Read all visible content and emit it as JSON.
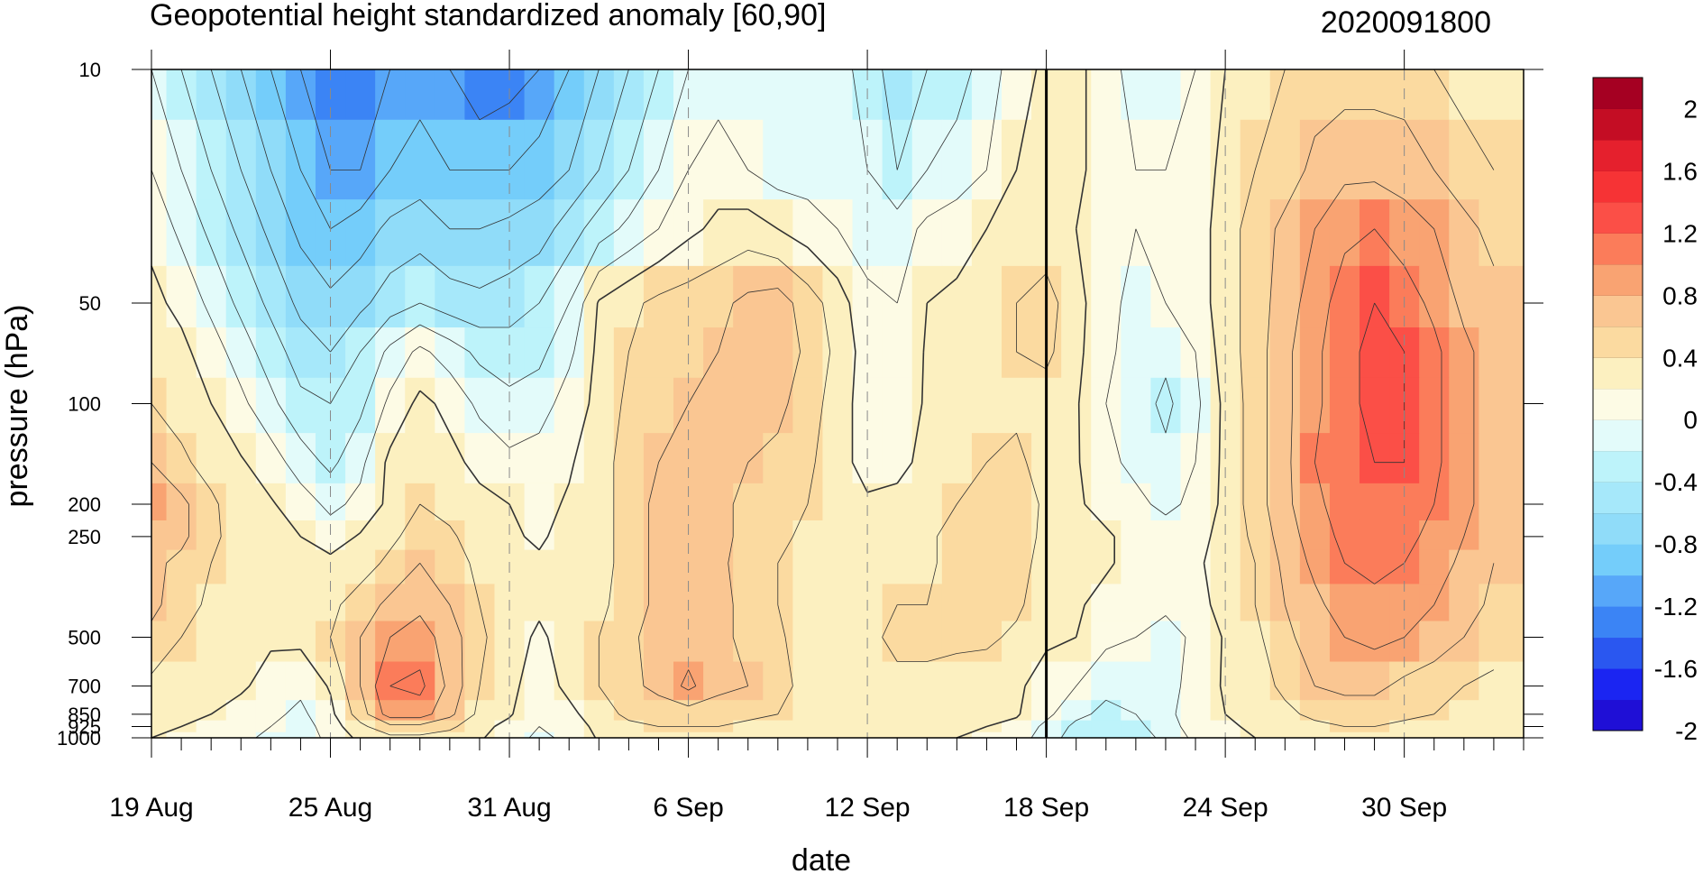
{
  "chart_data": {
    "type": "heatmap",
    "title": "Geopotential height standardized anomaly [60,90]",
    "timestamp": "2020091800",
    "xlabel": "date",
    "ylabel": "pressure (hPa)",
    "x_ticks": [
      "19 Aug",
      "25 Aug",
      "31 Aug",
      "6 Sep",
      "12 Sep",
      "18 Sep",
      "24 Sep",
      "30 Sep"
    ],
    "y_ticks": [
      10,
      50,
      100,
      200,
      250,
      500,
      700,
      850,
      925,
      1000
    ],
    "y_scale": "log",
    "y_range": [
      1000,
      10
    ],
    "x_range": [
      "2020-08-19",
      "2020-10-04"
    ],
    "reference_line": "2020-09-18",
    "colorbar": {
      "labels": [
        "2",
        "1.6",
        "1.2",
        "0.8",
        "0.4",
        "0",
        "-0.4",
        "-0.8",
        "-1.2",
        "-1.6",
        "-2"
      ],
      "levels": [
        -2.2,
        -2,
        -1.8,
        -1.6,
        -1.4,
        -1.2,
        -1,
        -0.8,
        -0.6,
        -0.4,
        -0.2,
        0,
        0.2,
        0.4,
        0.6,
        0.8,
        1,
        1.2,
        1.4,
        1.6,
        1.8,
        2,
        2.2
      ],
      "colors": [
        "#1f0fd6",
        "#1b25f2",
        "#2a57f0",
        "#3b84f5",
        "#57a7f9",
        "#74cdfa",
        "#90dcf9",
        "#a6e8fa",
        "#bdf3fa",
        "#e3fbfa",
        "#fdfbe5",
        "#fcf0c0",
        "#fbdaa0",
        "#fac692",
        "#f9a372",
        "#fb7c5a",
        "#fb4f47",
        "#f63335",
        "#e5202d",
        "#c40d24",
        "#a50022"
      ]
    },
    "grid": {
      "days": [
        0,
        1,
        2,
        3,
        4,
        5,
        6,
        7,
        8,
        9,
        10,
        11,
        12,
        13,
        14,
        15,
        16,
        17,
        18,
        19,
        20,
        21,
        22,
        23,
        24,
        25,
        26,
        27,
        28,
        29,
        30,
        31,
        32,
        33,
        34,
        35,
        36,
        37,
        38,
        39,
        40,
        41,
        42,
        43,
        44,
        45
      ],
      "levels_hpa": [
        10,
        20,
        30,
        50,
        70,
        100,
        150,
        200,
        250,
        300,
        400,
        500,
        700,
        850,
        925,
        1000
      ],
      "values": [
        [
          -0.4,
          -0.6,
          -0.8,
          -1.0,
          -1.2,
          -1.4,
          -1.6,
          -1.6,
          -1.4,
          -1.3,
          -1.4,
          -1.6,
          -1.5,
          -1.4,
          -1.2,
          -1.0,
          -0.8,
          -0.6,
          -0.4,
          -0.3,
          -0.3,
          -0.4,
          -0.4,
          -0.3,
          -0.5,
          -0.7,
          -0.6,
          -0.5,
          -0.3,
          -0.1,
          0.05,
          0.05,
          -0.1,
          -0.3,
          -0.3,
          -0.2,
          0.0,
          0.1,
          0.2,
          0.3,
          0.3,
          0.3,
          0.3,
          0.2,
          0.1,
          0.05
        ],
        [
          -0.2,
          -0.4,
          -0.6,
          -0.8,
          -1.0,
          -1.2,
          -1.4,
          -1.4,
          -1.2,
          -1.1,
          -1.2,
          -1.2,
          -1.2,
          -1.1,
          -1.0,
          -0.8,
          -0.6,
          -0.4,
          -0.2,
          -0.1,
          -0.2,
          -0.3,
          -0.3,
          -0.3,
          -0.4,
          -0.6,
          -0.4,
          -0.3,
          -0.2,
          0.0,
          0.05,
          0.05,
          -0.1,
          -0.2,
          -0.2,
          -0.1,
          0.05,
          0.2,
          0.3,
          0.45,
          0.55,
          0.55,
          0.5,
          0.4,
          0.3,
          0.2
        ],
        [
          -0.05,
          -0.25,
          -0.45,
          -0.65,
          -0.85,
          -1.05,
          -1.2,
          -1.1,
          -0.95,
          -0.9,
          -1.0,
          -1.0,
          -0.95,
          -0.9,
          -0.7,
          -0.5,
          -0.35,
          -0.2,
          -0.05,
          0.05,
          0.1,
          0.0,
          -0.1,
          -0.2,
          -0.3,
          -0.3,
          -0.15,
          -0.1,
          0.0,
          0.05,
          0.05,
          0.0,
          -0.1,
          -0.2,
          -0.2,
          -0.1,
          0.1,
          0.3,
          0.45,
          0.6,
          0.75,
          0.8,
          0.7,
          0.6,
          0.45,
          0.35
        ],
        [
          0.05,
          -0.05,
          -0.25,
          -0.45,
          -0.65,
          -0.85,
          -0.95,
          -0.85,
          -0.7,
          -0.6,
          -0.7,
          -0.75,
          -0.7,
          -0.6,
          -0.4,
          0.02,
          0.15,
          0.25,
          0.3,
          0.35,
          0.45,
          0.5,
          0.3,
          0.1,
          -0.15,
          -0.2,
          0.0,
          0.05,
          0.15,
          0.2,
          0.3,
          0.05,
          -0.1,
          -0.3,
          -0.2,
          -0.1,
          0.1,
          0.3,
          0.5,
          0.7,
          0.9,
          1.0,
          0.9,
          0.75,
          0.55,
          0.45
        ],
        [
          0.15,
          0.05,
          -0.1,
          -0.3,
          -0.5,
          -0.7,
          -0.8,
          -0.6,
          -0.35,
          -0.15,
          -0.3,
          -0.45,
          -0.5,
          -0.45,
          -0.25,
          0.05,
          0.2,
          0.3,
          0.35,
          0.4,
          0.5,
          0.55,
          0.35,
          0.15,
          -0.1,
          -0.15,
          0.02,
          0.05,
          0.1,
          0.2,
          0.25,
          0.05,
          -0.15,
          -0.3,
          -0.35,
          -0.2,
          0.1,
          0.3,
          0.55,
          0.75,
          0.95,
          1.05,
          1.0,
          0.85,
          0.65,
          0.5
        ],
        [
          0.2,
          0.1,
          0.0,
          -0.15,
          -0.35,
          -0.55,
          -0.6,
          -0.45,
          -0.15,
          0.05,
          -0.05,
          -0.25,
          -0.35,
          -0.3,
          -0.1,
          0.05,
          0.25,
          0.35,
          0.4,
          0.4,
          0.45,
          0.45,
          0.3,
          0.1,
          -0.1,
          -0.1,
          0.02,
          0.05,
          0.1,
          0.15,
          0.1,
          0.02,
          -0.2,
          -0.3,
          -0.45,
          -0.25,
          0.05,
          0.3,
          0.55,
          0.75,
          0.95,
          1.05,
          1.0,
          0.85,
          0.65,
          0.5
        ],
        [
          0.4,
          0.25,
          0.1,
          0.02,
          -0.1,
          -0.3,
          -0.45,
          -0.25,
          0.05,
          0.1,
          0.05,
          -0.05,
          -0.15,
          -0.1,
          -0.02,
          0.1,
          0.3,
          0.4,
          0.45,
          0.45,
          0.4,
          0.35,
          0.25,
          0.05,
          -0.05,
          -0.05,
          0.05,
          0.1,
          0.2,
          0.25,
          0.1,
          0.02,
          -0.15,
          -0.25,
          -0.35,
          -0.2,
          0.05,
          0.3,
          0.55,
          0.8,
          0.95,
          1.0,
          1.0,
          0.85,
          0.65,
          0.5
        ],
        [
          0.6,
          0.45,
          0.25,
          0.05,
          0.02,
          -0.1,
          -0.25,
          -0.15,
          0.05,
          0.2,
          0.1,
          0.05,
          0.0,
          -0.05,
          0.02,
          0.1,
          0.3,
          0.45,
          0.45,
          0.45,
          0.35,
          0.3,
          0.2,
          0.02,
          0.02,
          0.05,
          0.1,
          0.2,
          0.3,
          0.35,
          0.15,
          0.02,
          -0.05,
          -0.15,
          -0.25,
          -0.15,
          0.05,
          0.3,
          0.55,
          0.75,
          0.9,
          0.95,
          0.9,
          0.8,
          0.65,
          0.5
        ],
        [
          0.55,
          0.45,
          0.25,
          0.1,
          0.05,
          0.0,
          -0.1,
          0.02,
          0.15,
          0.3,
          0.25,
          0.05,
          0.02,
          -0.02,
          0.05,
          0.1,
          0.3,
          0.45,
          0.45,
          0.45,
          0.35,
          0.25,
          0.15,
          0.05,
          0.05,
          0.1,
          0.15,
          0.3,
          0.35,
          0.3,
          0.15,
          0.02,
          0.02,
          -0.05,
          -0.1,
          -0.05,
          0.05,
          0.25,
          0.5,
          0.7,
          0.85,
          0.9,
          0.85,
          0.75,
          0.6,
          0.45
        ],
        [
          0.45,
          0.35,
          0.2,
          0.1,
          0.05,
          0.02,
          0.05,
          0.1,
          0.25,
          0.4,
          0.3,
          0.15,
          0.05,
          0.02,
          0.05,
          0.1,
          0.3,
          0.45,
          0.5,
          0.45,
          0.3,
          0.2,
          0.1,
          0.05,
          0.05,
          0.1,
          0.15,
          0.3,
          0.35,
          0.3,
          0.1,
          0.02,
          0.02,
          -0.05,
          -0.05,
          -0.02,
          0.05,
          0.2,
          0.45,
          0.65,
          0.8,
          0.85,
          0.8,
          0.7,
          0.55,
          0.4
        ],
        [
          0.45,
          0.3,
          0.15,
          0.05,
          0.02,
          0.05,
          0.15,
          0.3,
          0.45,
          0.55,
          0.4,
          0.2,
          0.05,
          0.02,
          0.05,
          0.15,
          0.3,
          0.45,
          0.55,
          0.45,
          0.35,
          0.2,
          0.05,
          0.05,
          0.1,
          0.2,
          0.2,
          0.3,
          0.35,
          0.25,
          0.05,
          0.02,
          -0.05,
          -0.1,
          -0.15,
          -0.05,
          0.05,
          0.2,
          0.4,
          0.55,
          0.7,
          0.75,
          0.7,
          0.6,
          0.5,
          0.35
        ],
        [
          0.35,
          0.2,
          0.1,
          0.05,
          0.02,
          0.05,
          0.2,
          0.4,
          0.6,
          0.7,
          0.5,
          0.25,
          0.05,
          -0.02,
          0.05,
          0.2,
          0.35,
          0.5,
          0.5,
          0.45,
          0.35,
          0.25,
          0.05,
          0.05,
          0.15,
          0.25,
          0.25,
          0.25,
          0.25,
          0.15,
          0.02,
          0.0,
          -0.15,
          -0.2,
          -0.3,
          -0.15,
          0.02,
          0.15,
          0.35,
          0.5,
          0.6,
          0.65,
          0.6,
          0.5,
          0.4,
          0.3
        ],
        [
          0.15,
          0.1,
          0.05,
          0.02,
          -0.05,
          -0.15,
          0.02,
          0.4,
          0.8,
          0.85,
          0.55,
          0.2,
          0.05,
          -0.1,
          0.05,
          0.2,
          0.35,
          0.45,
          0.65,
          0.45,
          0.4,
          0.3,
          0.1,
          0.05,
          0.1,
          0.15,
          0.15,
          0.1,
          0.05,
          0.02,
          -0.05,
          -0.2,
          -0.35,
          -0.3,
          -0.3,
          -0.1,
          0.02,
          0.1,
          0.25,
          0.4,
          0.45,
          0.45,
          0.35,
          0.3,
          0.2,
          0.15
        ],
        [
          0.05,
          0.02,
          0.0,
          -0.05,
          -0.15,
          -0.25,
          -0.05,
          0.3,
          0.7,
          0.7,
          0.45,
          0.15,
          0.02,
          -0.15,
          -0.05,
          0.1,
          0.25,
          0.3,
          0.3,
          0.3,
          0.25,
          0.2,
          0.1,
          0.05,
          0.05,
          0.05,
          0.02,
          0.02,
          0.02,
          0.02,
          -0.15,
          -0.35,
          -0.45,
          -0.4,
          -0.25,
          -0.1,
          0.0,
          0.05,
          0.15,
          0.25,
          0.3,
          0.3,
          0.25,
          0.2,
          0.15,
          0.1
        ],
        [
          0.02,
          0.0,
          -0.05,
          -0.1,
          -0.2,
          -0.3,
          -0.1,
          0.15,
          0.35,
          0.35,
          0.25,
          0.05,
          -0.05,
          -0.2,
          -0.1,
          0.05,
          0.15,
          0.2,
          0.2,
          0.2,
          0.15,
          0.1,
          0.05,
          0.02,
          0.02,
          0.02,
          0.02,
          0.02,
          0.0,
          -0.05,
          -0.25,
          -0.45,
          -0.55,
          -0.45,
          -0.3,
          -0.1,
          -0.02,
          0.02,
          0.1,
          0.15,
          0.2,
          0.2,
          0.15,
          0.15,
          0.1,
          0.05
        ],
        [
          0.0,
          -0.02,
          -0.1,
          -0.15,
          -0.25,
          -0.3,
          -0.15,
          0.05,
          0.15,
          0.15,
          0.1,
          0.02,
          -0.1,
          -0.25,
          -0.15,
          0.02,
          0.1,
          0.1,
          0.1,
          0.1,
          0.1,
          0.05,
          0.02,
          0.0,
          0.02,
          0.02,
          0.02,
          0.0,
          -0.05,
          -0.1,
          -0.3,
          -0.5,
          -0.6,
          -0.5,
          -0.35,
          -0.15,
          -0.05,
          0.0,
          0.05,
          0.1,
          0.1,
          0.1,
          0.1,
          0.1,
          0.05,
          0.02
        ]
      ]
    }
  }
}
